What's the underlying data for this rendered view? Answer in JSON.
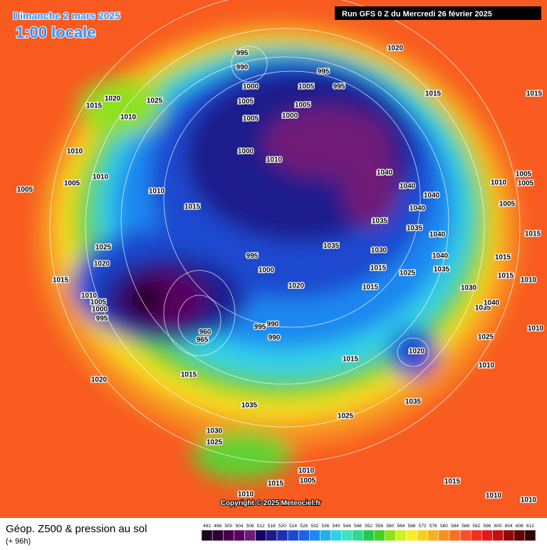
{
  "header": {
    "date": "Dimanche 2 mars 2025",
    "time": "1:00 locale",
    "run": "Run GFS 0 Z du Mercredi 26 février 2025"
  },
  "map": {
    "isobar_labels": [
      995,
      990,
      1000,
      1005,
      1005,
      1000,
      1010,
      1000,
      1005,
      995,
      1005,
      995,
      1020,
      1020,
      1025,
      1015,
      1010,
      1010,
      1005,
      1005,
      1010,
      1010,
      1015,
      1025,
      1020,
      1015,
      1010,
      1005,
      1000,
      995,
      995,
      1000,
      1020,
      995,
      990,
      990,
      965,
      960,
      1015,
      1020,
      1035,
      1030,
      1025,
      1040,
      1040,
      1040,
      1040,
      1035,
      1035,
      1040,
      1035,
      1030,
      1040,
      1015,
      1025,
      1035,
      1015,
      1030,
      1020,
      1015,
      1035,
      1025,
      1010,
      1005,
      1005,
      1005,
      1015,
      1015,
      1015,
      1010,
      1035,
      1040,
      1025,
      1010,
      1015,
      1015,
      1010,
      1005,
      1015,
      1010,
      1015,
      1010,
      1010,
      1010
    ]
  },
  "footer": {
    "title": "Géop. Z500 & pression au sol",
    "lead": "(+ 96h)",
    "copyright": "Copyright © 2025 Meteociel.fr"
  },
  "legend": {
    "values": [
      492,
      496,
      500,
      504,
      508,
      512,
      516,
      520,
      524,
      528,
      532,
      536,
      540,
      544,
      548,
      552,
      556,
      560,
      564,
      568,
      572,
      576,
      580,
      584,
      588,
      592,
      596,
      600,
      604,
      608,
      612
    ],
    "colors": [
      "#1a001a",
      "#2e0033",
      "#440049",
      "#5a0060",
      "#701a78",
      "#160060",
      "#1a1a8c",
      "#1c30b0",
      "#1a48d0",
      "#1c64e6",
      "#1e88f0",
      "#20b0f0",
      "#30d0e8",
      "#40e0c0",
      "#30d890",
      "#20c850",
      "#40d020",
      "#90e020",
      "#d0f020",
      "#f8f020",
      "#f8d020",
      "#f8b020",
      "#f89020",
      "#f87020",
      "#f85020",
      "#f03020",
      "#e01818",
      "#c01010",
      "#900808",
      "#600404",
      "#300000"
    ]
  }
}
